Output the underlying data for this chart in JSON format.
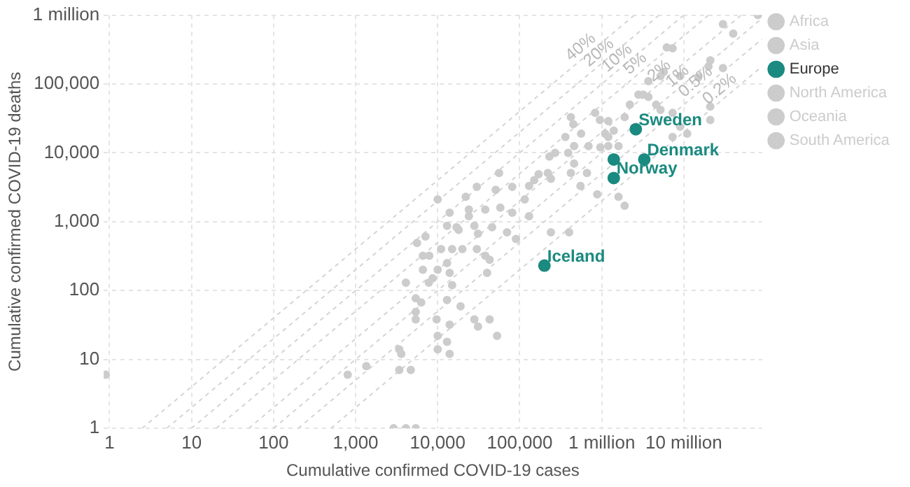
{
  "chart_data": {
    "type": "scatter",
    "xlabel": "Cumulative confirmed COVID-19 cases",
    "ylabel": "Cumulative confirmed COVID-19 deaths",
    "log": "xy",
    "grid": true,
    "legend": "top right",
    "marker": "circle",
    "xlim": [
      0.85,
      90000000
    ],
    "ylim": [
      1,
      1000000
    ],
    "xticks": [
      1,
      10,
      100,
      {
        "value": 1000,
        "label": "1,000"
      },
      {
        "value": 10000,
        "label": "10,000"
      },
      {
        "value": 100000,
        "label": "100,000"
      },
      {
        "value": 1000000,
        "label": "1 million"
      },
      {
        "value": 10000000,
        "label": "10 million"
      }
    ],
    "yticks": [
      1,
      10,
      100,
      {
        "value": 1000,
        "label": "1,000"
      },
      {
        "value": 10000,
        "label": "10,000"
      },
      {
        "value": 100000,
        "label": "100,000"
      },
      {
        "value": 1000000,
        "label": "1 million"
      }
    ],
    "series": [
      {
        "name": "Africa",
        "color": "#cccccc",
        "x": [
          5400,
          6300,
          5400,
          5400,
          6600,
          7900,
          6600,
          8700,
          7800,
          11000,
          9700,
          10000,
          10000,
          13000,
          14000,
          13000,
          14000,
          13000,
          14000,
          28000,
          43000,
          31000,
          53000,
          19000,
          40000,
          43000,
          38000,
          30000,
          20000,
          15000,
          70000,
          3700000,
          7100,
          5600,
          10000,
          4100,
          15000,
          18000,
          24000
        ],
        "values": [
          77,
          67,
          49,
          38,
          200,
          320,
          320,
          150,
          130,
          400,
          38,
          22,
          14,
          250,
          180,
          73,
          32,
          18,
          12,
          38,
          38,
          30,
          22,
          59,
          180,
          280,
          320,
          400,
          400,
          120,
          700,
          110000,
          610,
          490,
          200,
          130,
          400,
          760,
          1200
        ]
      },
      {
        "name": "Asia",
        "color": "#cccccc",
        "x": [
          90000,
          400000,
          240000,
          40000000,
          21000000,
          20000000,
          15000000,
          6200000,
          2200000,
          1900000,
          830000,
          950000,
          1200000,
          1400000,
          1200000,
          1100000,
          960000,
          560000,
          450000,
          360000,
          460000,
          390000,
          270000,
          230000,
          460000,
          690000,
          420000,
          240000,
          550000,
          880000
        ],
        "values": [
          560,
          700,
          700,
          540000,
          220000,
          180000,
          125000,
          340000,
          50000,
          33000,
          38000,
          30000,
          29000,
          21000,
          17000,
          19000,
          12000,
          19000,
          26000,
          17000,
          12500,
          10000,
          10000,
          8800,
          7000,
          12500,
          5100,
          4200,
          3300,
          2500
        ]
      },
      {
        "name": "Europe",
        "color": "#1b8a80",
        "x": [
          2600000,
          1400000,
          3300000,
          1400000,
          200000
        ],
        "values": [
          22000,
          8000,
          8000,
          4300,
          230
        ]
      },
      {
        "name": "North America",
        "color": "#cccccc",
        "x": [
          0.9,
          800,
          1350,
          80000000,
          7300000,
          4600000,
          5200000,
          7300000,
          1600000,
          1200000,
          170000,
          150000,
          130000,
          220000,
          81000,
          115000,
          51000,
          56000,
          30000,
          58000,
          38000,
          81000,
          130000,
          420000,
          660000
        ],
        "values": [
          6,
          6,
          8,
          1000000,
          330000,
          50000,
          42000,
          38000,
          12500,
          12500,
          4900,
          4000,
          3300,
          5100,
          3200,
          2100,
          2900,
          5100,
          3200,
          1600,
          1500,
          1350,
          1200,
          33000,
          5100
        ]
      },
      {
        "name": "Oceania",
        "color": "#cccccc",
        "x": [
          3400,
          3600,
          3400,
          4700,
          2900,
          4100,
          5400,
          11000000,
          1600000,
          1900000,
          24000,
          28000,
          31000,
          46000,
          10000,
          22000,
          14000,
          17000,
          13000
        ],
        "values": [
          14,
          12,
          7,
          7,
          1,
          1,
          1,
          19000,
          2300,
          1700,
          1500,
          870,
          670,
          830,
          2100,
          2300,
          1350,
          830,
          870
        ]
      },
      {
        "name": "South America",
        "color": "#cccccc",
        "x": [
          30000000,
          30000000,
          9000000,
          5200000,
          5700000,
          3700000,
          3200000,
          2800000,
          9000000,
          7300000,
          21000000,
          21000000
        ],
        "values": [
          740000,
          170000,
          130000,
          130000,
          150000,
          65000,
          70000,
          70000,
          24000,
          17000,
          47000,
          30000
        ]
      },
      {
        "name": "40%",
        "type": "line",
        "color": "#d4d4d4",
        "line_style": "dashed",
        "marker": "none",
        "x": [
          2.5,
          2500000
        ],
        "values": [
          1,
          1000000
        ]
      },
      {
        "name": "20%",
        "type": "line",
        "color": "#d4d4d4",
        "line_style": "dashed",
        "marker": "none",
        "x": [
          5,
          5000000
        ],
        "values": [
          1,
          1000000
        ]
      },
      {
        "name": "10%",
        "type": "line",
        "color": "#d4d4d4",
        "line_style": "dashed",
        "marker": "none",
        "x": [
          10,
          10000000
        ],
        "values": [
          1,
          1000000
        ]
      },
      {
        "name": "5%",
        "type": "line",
        "color": "#d4d4d4",
        "line_style": "dashed",
        "marker": "none",
        "x": [
          20,
          20000000
        ],
        "values": [
          1,
          1000000
        ]
      },
      {
        "name": "2%",
        "type": "line",
        "color": "#d4d4d4",
        "line_style": "dashed",
        "marker": "none",
        "x": [
          50,
          50000000
        ],
        "values": [
          1,
          1000000
        ]
      },
      {
        "name": "1%",
        "type": "line",
        "color": "#d4d4d4",
        "line_style": "dashed",
        "marker": "none",
        "x": [
          100,
          90000000
        ],
        "values": [
          1,
          900000
        ]
      },
      {
        "name": "0.5%",
        "type": "line",
        "color": "#d4d4d4",
        "line_style": "dashed",
        "marker": "none",
        "x": [
          200,
          90000000
        ],
        "values": [
          1,
          450000
        ]
      },
      {
        "name": "0.2%",
        "type": "line",
        "color": "#d4d4d4",
        "line_style": "dashed",
        "marker": "none",
        "x": [
          500,
          90000000
        ],
        "values": [
          1,
          180000
        ]
      }
    ],
    "annotations": [
      {
        "text": "Sweden",
        "x": 2600000,
        "y": 22000
      },
      {
        "text": "Denmark",
        "x": 3300000,
        "y": 8000
      },
      {
        "text": "Norway",
        "x": 1400000,
        "y": 4300
      },
      {
        "text": "Iceland",
        "x": 200000,
        "y": 230
      }
    ]
  }
}
